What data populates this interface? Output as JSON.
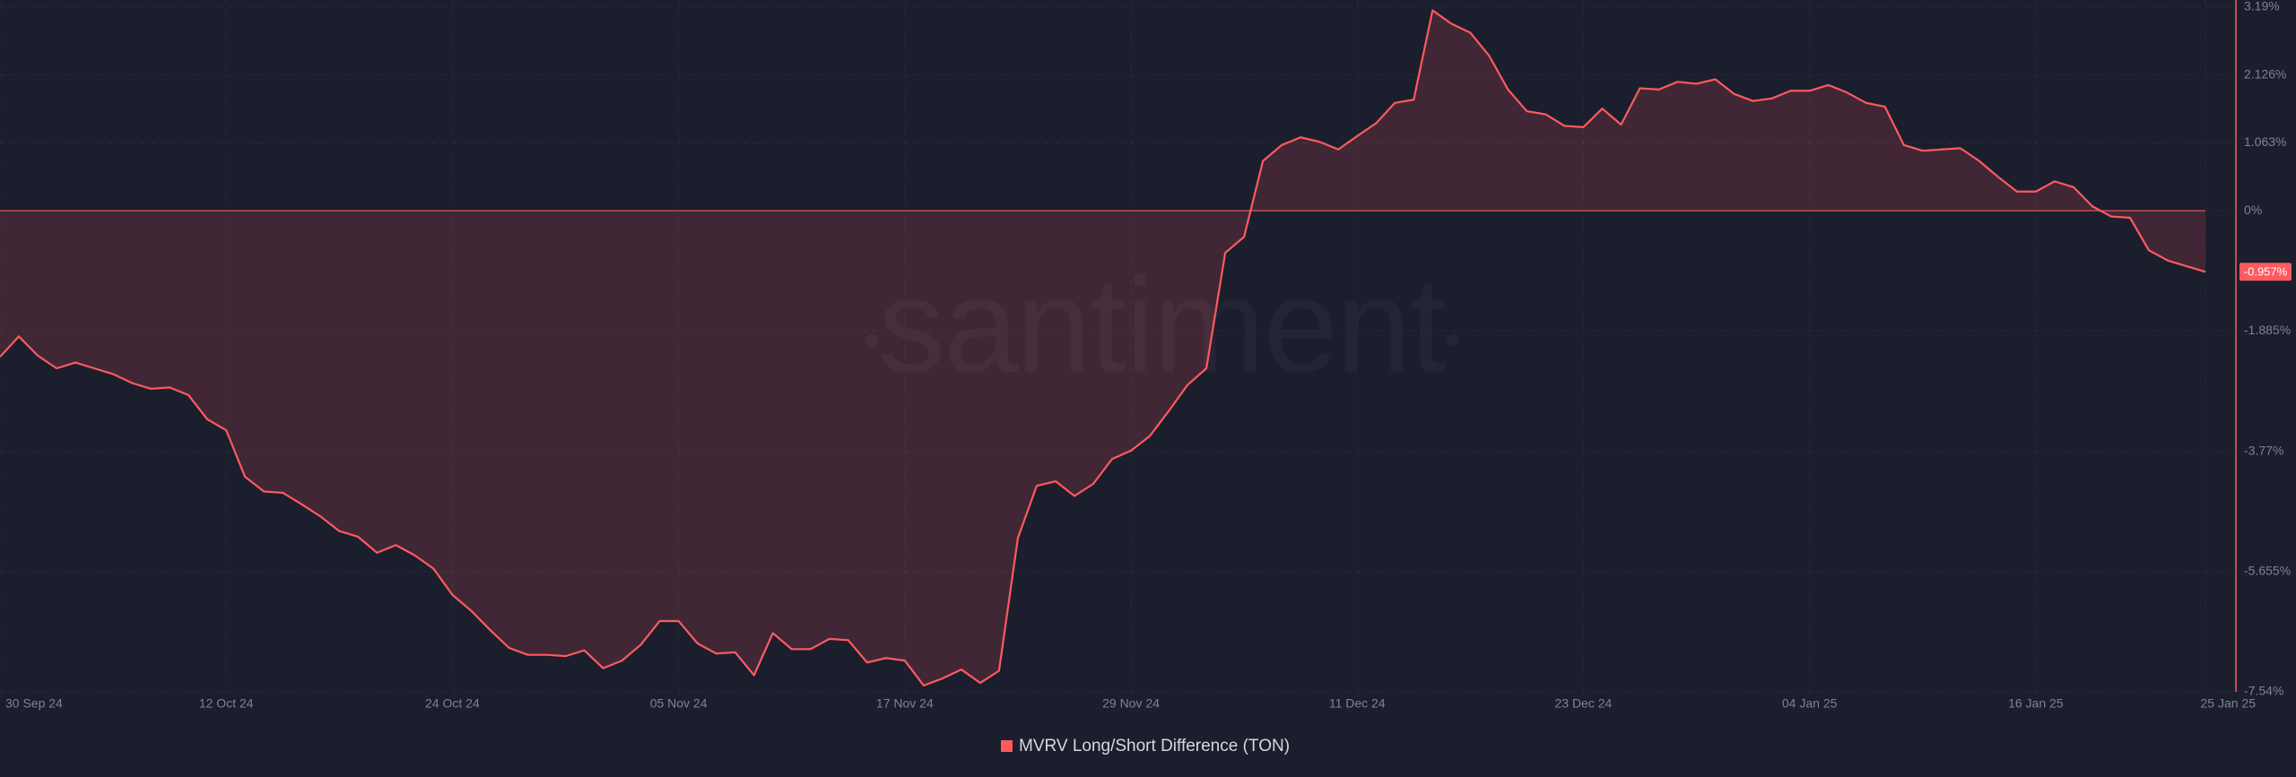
{
  "chart_data": {
    "type": "line",
    "watermark": "santiment",
    "x": [
      "2024-09-30",
      "2024-10-01",
      "2024-10-02",
      "2024-10-03",
      "2024-10-04",
      "2024-10-05",
      "2024-10-06",
      "2024-10-07",
      "2024-10-08",
      "2024-10-09",
      "2024-10-10",
      "2024-10-11",
      "2024-10-12",
      "2024-10-13",
      "2024-10-14",
      "2024-10-15",
      "2024-10-16",
      "2024-10-17",
      "2024-10-18",
      "2024-10-19",
      "2024-10-20",
      "2024-10-21",
      "2024-10-22",
      "2024-10-23",
      "2024-10-24",
      "2024-10-25",
      "2024-10-26",
      "2024-10-27",
      "2024-10-28",
      "2024-10-29",
      "2024-10-30",
      "2024-10-31",
      "2024-11-01",
      "2024-11-02",
      "2024-11-03",
      "2024-11-04",
      "2024-11-05",
      "2024-11-06",
      "2024-11-07",
      "2024-11-08",
      "2024-11-09",
      "2024-11-10",
      "2024-11-11",
      "2024-11-12",
      "2024-11-13",
      "2024-11-14",
      "2024-11-15",
      "2024-11-16",
      "2024-11-17",
      "2024-11-18",
      "2024-11-19",
      "2024-11-20",
      "2024-11-21",
      "2024-11-22",
      "2024-11-23",
      "2024-11-24",
      "2024-11-25",
      "2024-11-26",
      "2024-11-27",
      "2024-11-28",
      "2024-11-29",
      "2024-11-30",
      "2024-12-01",
      "2024-12-02",
      "2024-12-03",
      "2024-12-04",
      "2024-12-05",
      "2024-12-06",
      "2024-12-07",
      "2024-12-08",
      "2024-12-09",
      "2024-12-10",
      "2024-12-11",
      "2024-12-12",
      "2024-12-13",
      "2024-12-14",
      "2024-12-15",
      "2024-12-16",
      "2024-12-17",
      "2024-12-18",
      "2024-12-19",
      "2024-12-20",
      "2024-12-21",
      "2024-12-22",
      "2024-12-23",
      "2024-12-24",
      "2024-12-25",
      "2024-12-26",
      "2024-12-27",
      "2024-12-28",
      "2024-12-29",
      "2024-12-30",
      "2024-12-31",
      "2025-01-01",
      "2025-01-02",
      "2025-01-03",
      "2025-01-04",
      "2025-01-05",
      "2025-01-06",
      "2025-01-07",
      "2025-01-08",
      "2025-01-09",
      "2025-01-10",
      "2025-01-11",
      "2025-01-12",
      "2025-01-13",
      "2025-01-14",
      "2025-01-15",
      "2025-01-16",
      "2025-01-17",
      "2025-01-18",
      "2025-01-19",
      "2025-01-20",
      "2025-01-21",
      "2025-01-22",
      "2025-01-23",
      "2025-01-24",
      "2025-01-25"
    ],
    "series": [
      {
        "name": "MVRV Long/Short Difference (TON)",
        "color": "#ff5a5f",
        "values": [
          -2.29,
          -1.97,
          -2.27,
          -2.47,
          -2.38,
          -2.47,
          -2.56,
          -2.7,
          -2.79,
          -2.77,
          -2.89,
          -3.27,
          -3.44,
          -4.17,
          -4.4,
          -4.42,
          -4.6,
          -4.79,
          -5.02,
          -5.11,
          -5.36,
          -5.24,
          -5.4,
          -5.61,
          -6.02,
          -6.27,
          -6.57,
          -6.85,
          -6.96,
          -6.96,
          -6.98,
          -6.89,
          -7.17,
          -7.05,
          -6.8,
          -6.43,
          -6.43,
          -6.78,
          -6.94,
          -6.92,
          -7.28,
          -6.62,
          -6.87,
          -6.87,
          -6.71,
          -6.73,
          -7.08,
          -7.01,
          -7.05,
          -7.44,
          -7.33,
          -7.19,
          -7.4,
          -7.21,
          -5.13,
          -4.31,
          -4.24,
          -4.47,
          -4.28,
          -3.89,
          -3.76,
          -3.53,
          -3.14,
          -2.73,
          -2.47,
          -0.66,
          -0.41,
          0.78,
          1.03,
          1.15,
          1.08,
          0.96,
          1.17,
          1.37,
          1.69,
          1.74,
          3.14,
          2.93,
          2.79,
          2.43,
          1.9,
          1.56,
          1.51,
          1.33,
          1.31,
          1.6,
          1.35,
          1.92,
          1.9,
          2.02,
          1.99,
          2.06,
          1.83,
          1.72,
          1.76,
          1.88,
          1.88,
          1.97,
          1.85,
          1.69,
          1.63,
          1.03,
          0.94,
          0.96,
          0.98,
          0.78,
          0.53,
          0.3,
          0.3,
          0.46,
          0.37,
          0.07,
          -0.09,
          -0.11,
          -0.62,
          -0.78,
          -0.87,
          -0.957
        ]
      }
    ],
    "current_value": {
      "value": -0.957,
      "label": "-0.957%"
    },
    "xlim": [
      "2024-09-30",
      "2025-01-25"
    ],
    "xticks": [
      {
        "value": "2024-09-30",
        "label": "30 Sep 24"
      },
      {
        "value": "2024-10-12",
        "label": "12 Oct 24"
      },
      {
        "value": "2024-10-24",
        "label": "24 Oct 24"
      },
      {
        "value": "2024-11-05",
        "label": "05 Nov 24"
      },
      {
        "value": "2024-11-17",
        "label": "17 Nov 24"
      },
      {
        "value": "2024-11-29",
        "label": "29 Nov 24"
      },
      {
        "value": "2024-12-11",
        "label": "11 Dec 24"
      },
      {
        "value": "2024-12-23",
        "label": "23 Dec 24"
      },
      {
        "value": "2025-01-04",
        "label": "04 Jan 25"
      },
      {
        "value": "2025-01-16",
        "label": "16 Jan 25"
      },
      {
        "value": "2025-01-25",
        "label": "25 Jan 25"
      }
    ],
    "ylim": [
      -7.54,
      3.19
    ],
    "yticks": [
      {
        "value": 3.19,
        "label": "3.19%"
      },
      {
        "value": 2.126,
        "label": "2.126%"
      },
      {
        "value": 1.063,
        "label": "1.063%"
      },
      {
        "value": 0,
        "label": "0%"
      },
      {
        "value": -1.885,
        "label": "-1.885%"
      },
      {
        "value": -3.77,
        "label": "-3.77%"
      },
      {
        "value": -5.655,
        "label": "-5.655%"
      },
      {
        "value": -7.54,
        "label": "-7.54%"
      }
    ],
    "grid": true,
    "legend": "bottom"
  }
}
